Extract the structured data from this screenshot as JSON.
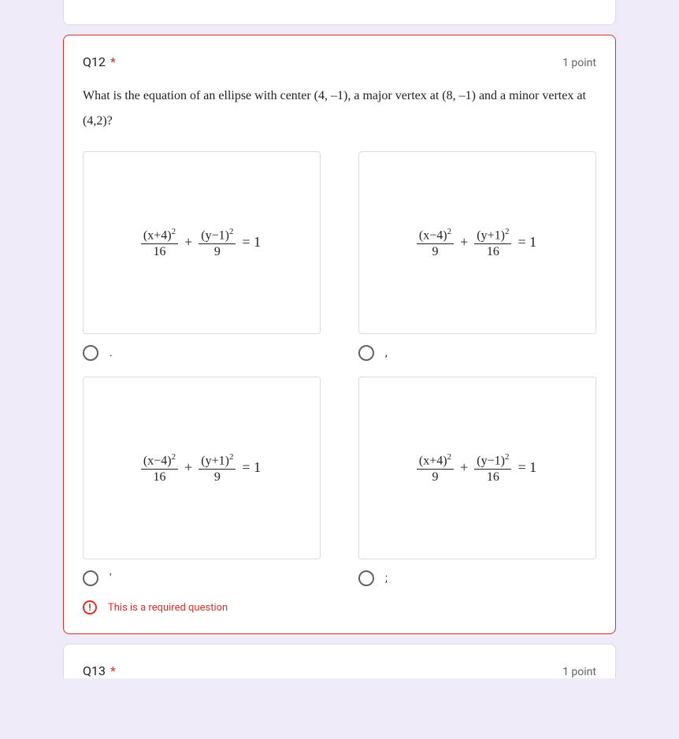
{
  "q12": {
    "title": "Q12",
    "points": "1 point",
    "prompt": "What is the equation of an ellipse with center (4, –1),  a major vertex at (8, –1) and a minor vertex at (4,2)?",
    "required_msg": "This is a required question",
    "options": [
      {
        "label": ".",
        "eq": {
          "n1": "(x+4)",
          "d1": "16",
          "n2": "(y−1)",
          "d2": "9"
        }
      },
      {
        "label": ",",
        "eq": {
          "n1": "(x−4)",
          "d1": "9",
          "n2": "(y+1)",
          "d2": "16"
        }
      },
      {
        "label": "'",
        "eq": {
          "n1": "(x−4)",
          "d1": "16",
          "n2": "(y+1)",
          "d2": "9"
        }
      },
      {
        "label": ";",
        "eq": {
          "n1": "(x+4)",
          "d1": "9",
          "n2": "(y−1)",
          "d2": "16"
        }
      }
    ]
  },
  "q13": {
    "title": "Q13",
    "points": "1 point"
  },
  "colors": {
    "background": "#f0ebf8",
    "card_bg": "#ffffff",
    "border": "#dadce0",
    "error": "#d93025",
    "text": "#202124",
    "text_secondary": "#5f6368"
  }
}
